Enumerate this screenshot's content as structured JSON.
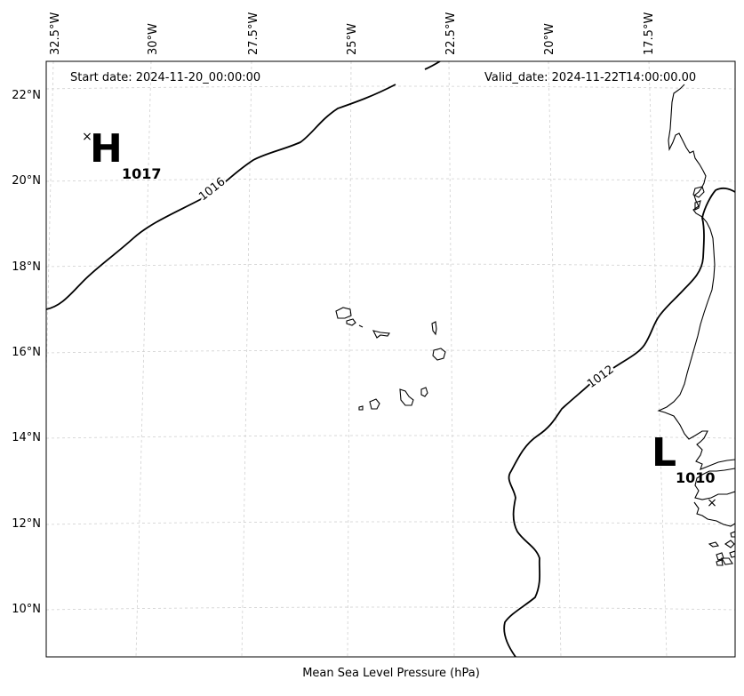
{
  "map": {
    "start_date": "Start date: 2024-11-20_00:00:00",
    "valid_date": "Valid_date: 2024-11-22T14:00:00.00",
    "xlabel": "Mean Sea Level Pressure (hPa)",
    "lon_ticks": [
      "32.5°W",
      "30°W",
      "27.5°W",
      "25°W",
      "22.5°W",
      "20°W",
      "17.5°W"
    ],
    "lat_ticks": [
      "22°N",
      "20°N",
      "18°N",
      "16°N",
      "14°N",
      "12°N",
      "10°N"
    ],
    "high": {
      "letter": "H",
      "value": "1017",
      "marker": "×"
    },
    "low": {
      "letter": "L",
      "value": "1010",
      "marker": "×"
    },
    "contours": [
      {
        "level": 1016,
        "label": "1016"
      },
      {
        "level": 1012,
        "label": "1012"
      }
    ]
  },
  "colors": {
    "gridline": "#d0d0d0",
    "contour": "#000000",
    "coast": "#000000",
    "frame": "#000000",
    "background": "#ffffff"
  }
}
